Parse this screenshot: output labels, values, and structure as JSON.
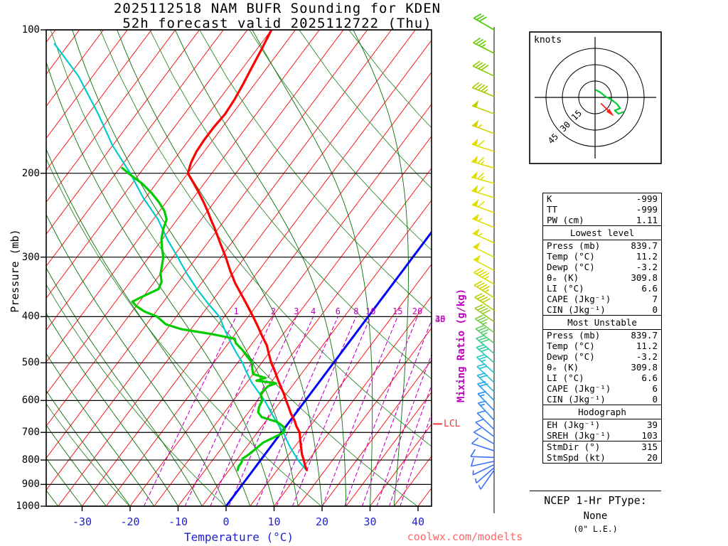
{
  "title": {
    "line1": "2025112518 NAM BUFR Sounding for KDEN",
    "line2": "52h forecast valid 2025112722 (Thu)"
  },
  "watermark": "coolwx.com/modelts",
  "axes": {
    "pressure_label": "Pressure (mb)",
    "temperature_label": "Temperature (°C)",
    "mixing_ratio_label": "Mixing Ratio (g/kg)",
    "lcl_label": "LCL"
  },
  "hodograph_panel": {
    "unit_label": "knots",
    "ring_labels": [
      "15",
      "30",
      "45"
    ]
  },
  "stats_panel": {
    "sections": [
      {
        "header": null,
        "rows": [
          [
            "K",
            "-999"
          ],
          [
            "TT",
            "-999"
          ],
          [
            "PW (cm)",
            "1.11"
          ]
        ]
      },
      {
        "header": "Lowest level",
        "rows": [
          [
            "Press (mb)",
            "839.7"
          ],
          [
            "Temp (°C)",
            "11.2"
          ],
          [
            "Dewp (°C)",
            "-3.2"
          ],
          [
            "θₑ (K)",
            "309.8"
          ],
          [
            "LI (°C)",
            "6.6"
          ],
          [
            "CAPE (Jkg⁻¹)",
            "7"
          ],
          [
            "CIN (Jkg⁻¹)",
            "0"
          ]
        ]
      },
      {
        "header": "Most Unstable",
        "rows": [
          [
            "Press (mb)",
            "839.7"
          ],
          [
            "Temp (°C)",
            "11.2"
          ],
          [
            "Dewp (°C)",
            "-3.2"
          ],
          [
            "θₑ (K)",
            "309.8"
          ],
          [
            "LI (°C)",
            "6.6"
          ],
          [
            "CAPE (Jkg⁻¹)",
            "6"
          ],
          [
            "CIN (Jkg⁻¹)",
            "0"
          ]
        ]
      },
      {
        "header": "Hodograph",
        "rows": [
          [
            "EH (Jkg⁻¹)",
            "39"
          ],
          [
            "SREH (Jkg⁻¹)",
            "103"
          ]
        ]
      },
      {
        "header": null,
        "rows": [
          [
            "StmDir (°)",
            "315"
          ],
          [
            "StmSpd (kt)",
            "20"
          ]
        ]
      }
    ]
  },
  "ptype_panel": {
    "title": "NCEP 1-Hr PType:",
    "value": "None",
    "note": "(0\" L.E.)"
  },
  "colors": {
    "isotherm": "#ff0000",
    "zero_isotherm": "#0000ff",
    "dry_adiabat": "#2d8b2d",
    "moist_adiabat": "#0a700a",
    "mixing_ratio": "#cc00cc",
    "temperature_profile": "#ff0000",
    "dewpoint_profile": "#00cc00",
    "parcel_profile": "#00cccc",
    "hodo_trace": "#00cc33",
    "storm_arrow": "#ff2222",
    "lcl": "#ff3333"
  },
  "chart_data": {
    "type": "line",
    "title": "2025112518 NAM BUFR Sounding for KDEN",
    "subtitle": "52h forecast valid 2025112722 (Thu)",
    "diagram": "skew-t log-p",
    "x_axis": {
      "label": "Temperature (°C)",
      "ticks": [
        -30,
        -20,
        -10,
        0,
        10,
        20,
        30,
        40
      ],
      "range": [
        -40,
        45
      ]
    },
    "y_axis": {
      "label": "Pressure (mb)",
      "ticks": [
        100,
        200,
        300,
        400,
        500,
        600,
        700,
        800,
        900,
        1000
      ],
      "scale": "log",
      "range": [
        100,
        1000
      ]
    },
    "isotherm_step": 5,
    "highlight_isotherm": 0,
    "dry_adiabats_K": [
      233,
      253,
      273,
      293,
      313,
      333,
      353,
      373,
      393,
      413,
      433
    ],
    "moist_adiabats_C": [
      -35,
      -30,
      -25,
      -20,
      -15,
      -10,
      -5,
      0,
      5,
      10,
      15,
      20,
      25,
      30,
      35
    ],
    "mixing_ratio_lines": [
      1,
      2,
      3,
      4,
      6,
      8,
      10,
      15,
      20,
      25,
      30,
      35,
      40
    ],
    "lcl_pressure": 672,
    "series": [
      {
        "name": "parcel",
        "color": "#00cccc",
        "width": 2.2,
        "points": [
          [
            107,
            -108
          ],
          [
            125,
            -98
          ],
          [
            150,
            -88
          ],
          [
            175,
            -80
          ],
          [
            200,
            -72
          ],
          [
            225,
            -65.5
          ],
          [
            250,
            -59
          ],
          [
            275,
            -54
          ],
          [
            300,
            -49
          ],
          [
            325,
            -44.5
          ],
          [
            350,
            -40
          ],
          [
            375,
            -35.5
          ],
          [
            400,
            -31
          ],
          [
            425,
            -28
          ],
          [
            450,
            -25
          ],
          [
            475,
            -22
          ],
          [
            500,
            -19
          ],
          [
            525,
            -16.5
          ],
          [
            550,
            -14
          ],
          [
            575,
            -11.2
          ],
          [
            600,
            -8.5
          ],
          [
            625,
            -6.2
          ],
          [
            650,
            -4
          ],
          [
            675,
            -1.8
          ],
          [
            700,
            0.4
          ],
          [
            725,
            2.2
          ],
          [
            750,
            4
          ],
          [
            775,
            5.9
          ],
          [
            800,
            7.8
          ],
          [
            820,
            9.4
          ],
          [
            840,
            11.1
          ]
        ]
      },
      {
        "name": "temperature",
        "color": "#ff0000",
        "width": 3.2,
        "points": [
          [
            840,
            11.2
          ],
          [
            820,
            10.0
          ],
          [
            800,
            9.0
          ],
          [
            780,
            7.8
          ],
          [
            760,
            6.8
          ],
          [
            740,
            5.8
          ],
          [
            720,
            4.8
          ],
          [
            700,
            3.8
          ],
          [
            680,
            2.2
          ],
          [
            660,
            0.8
          ],
          [
            640,
            -0.9
          ],
          [
            620,
            -2.4
          ],
          [
            600,
            -4.0
          ],
          [
            580,
            -5.6
          ],
          [
            560,
            -7.4
          ],
          [
            540,
            -9.2
          ],
          [
            520,
            -11.0
          ],
          [
            500,
            -13.0
          ],
          [
            480,
            -14.8
          ],
          [
            460,
            -16.6
          ],
          [
            440,
            -19.0
          ],
          [
            420,
            -21.4
          ],
          [
            400,
            -24.0
          ],
          [
            380,
            -26.8
          ],
          [
            360,
            -29.8
          ],
          [
            340,
            -33.0
          ],
          [
            320,
            -36.0
          ],
          [
            300,
            -39.0
          ],
          [
            280,
            -42.4
          ],
          [
            260,
            -46.0
          ],
          [
            250,
            -48.0
          ],
          [
            240,
            -50.0
          ],
          [
            230,
            -52.2
          ],
          [
            220,
            -54.6
          ],
          [
            210,
            -57.2
          ],
          [
            200,
            -60.0
          ],
          [
            190,
            -61.0
          ],
          [
            180,
            -61.6
          ],
          [
            170,
            -61.8
          ],
          [
            160,
            -61.8
          ],
          [
            150,
            -61.5
          ],
          [
            140,
            -61.8
          ],
          [
            130,
            -62.4
          ],
          [
            120,
            -63.2
          ],
          [
            110,
            -64.0
          ],
          [
            100,
            -65.0
          ]
        ]
      },
      {
        "name": "dewpoint",
        "color": "#00cc00",
        "width": 3.2,
        "points": [
          [
            840,
            -3.2
          ],
          [
            825,
            -3.6
          ],
          [
            810,
            -3.6
          ],
          [
            795,
            -4.0
          ],
          [
            780,
            -3.4
          ],
          [
            765,
            -3.0
          ],
          [
            750,
            -2.6
          ],
          [
            735,
            -2.2
          ],
          [
            720,
            -1.0
          ],
          [
            710,
            -0.2
          ],
          [
            700,
            0.5
          ],
          [
            690,
            0.2
          ],
          [
            680,
            -0.6
          ],
          [
            665,
            -2.6
          ],
          [
            650,
            -6.5
          ],
          [
            635,
            -8.0
          ],
          [
            620,
            -8.6
          ],
          [
            600,
            -9.0
          ],
          [
            580,
            -10.4
          ],
          [
            560,
            -10.0
          ],
          [
            552,
            -8.8
          ],
          [
            545,
            -13.3
          ],
          [
            538,
            -11.8
          ],
          [
            528,
            -15.0
          ],
          [
            515,
            -16.0
          ],
          [
            500,
            -17.0
          ],
          [
            485,
            -19.0
          ],
          [
            470,
            -21.0
          ],
          [
            455,
            -23.4
          ],
          [
            445,
            -24.4
          ],
          [
            435,
            -30.0
          ],
          [
            425,
            -37.0
          ],
          [
            415,
            -41.0
          ],
          [
            400,
            -44.0
          ],
          [
            390,
            -47.5
          ],
          [
            380,
            -50.0
          ],
          [
            372,
            -51.5
          ],
          [
            362,
            -50.0
          ],
          [
            350,
            -48.0
          ],
          [
            338,
            -48.5
          ],
          [
            325,
            -50.0
          ],
          [
            312,
            -51.0
          ],
          [
            300,
            -52.0
          ],
          [
            288,
            -53.6
          ],
          [
            275,
            -55.2
          ],
          [
            262,
            -56.4
          ],
          [
            250,
            -57.2
          ],
          [
            240,
            -59.0
          ],
          [
            230,
            -61.5
          ],
          [
            220,
            -64.5
          ],
          [
            210,
            -68.0
          ],
          [
            202,
            -71.5
          ],
          [
            195,
            -74.5
          ]
        ]
      }
    ],
    "wind_barbs": [
      [
        100,
        30,
        300,
        "#44cc00"
      ],
      [
        112,
        35,
        297,
        "#66cc00"
      ],
      [
        125,
        40,
        295,
        "#88cc00"
      ],
      [
        138,
        45,
        292,
        "#a6cc00"
      ],
      [
        150,
        50,
        290,
        "#c2d000"
      ],
      [
        165,
        55,
        290,
        "#d4d400"
      ],
      [
        180,
        60,
        288,
        "#e0e000"
      ],
      [
        195,
        65,
        286,
        "#e0e000"
      ],
      [
        210,
        65,
        285,
        "#e0e000"
      ],
      [
        225,
        60,
        287,
        "#e0e000"
      ],
      [
        242,
        60,
        290,
        "#e0e000"
      ],
      [
        260,
        55,
        292,
        "#e0e000"
      ],
      [
        280,
        55,
        294,
        "#e0e000"
      ],
      [
        300,
        50,
        296,
        "#e0e000"
      ],
      [
        320,
        50,
        298,
        "#e0e000"
      ],
      [
        342,
        45,
        300,
        "#dcdc00"
      ],
      [
        365,
        45,
        302,
        "#d0d400"
      ],
      [
        388,
        40,
        304,
        "#b8d000"
      ],
      [
        410,
        40,
        305,
        "#98cc22"
      ],
      [
        432,
        35,
        306,
        "#78cc44"
      ],
      [
        455,
        35,
        308,
        "#58cc66"
      ],
      [
        478,
        30,
        310,
        "#40cc88"
      ],
      [
        500,
        28,
        311,
        "#30ccaa"
      ],
      [
        525,
        25,
        312,
        "#26c8c8"
      ],
      [
        550,
        22,
        313,
        "#22c0d8"
      ],
      [
        575,
        20,
        314,
        "#22b4e4"
      ],
      [
        600,
        18,
        315,
        "#229fee"
      ],
      [
        630,
        16,
        316,
        "#2a8ff4"
      ],
      [
        660,
        14,
        317,
        "#338af8"
      ],
      [
        690,
        12,
        314,
        "#3680fa"
      ],
      [
        715,
        11,
        308,
        "#3a7cfc"
      ],
      [
        740,
        10,
        300,
        "#3a78fc"
      ],
      [
        765,
        9,
        288,
        "#3a74fc"
      ],
      [
        790,
        8,
        272,
        "#3a70fc"
      ],
      [
        805,
        8,
        258,
        "#3a70fc"
      ],
      [
        818,
        7,
        244,
        "#3a70fc"
      ],
      [
        830,
        6,
        229,
        "#3a70fc"
      ],
      [
        840,
        5,
        215,
        "#3a70fc"
      ]
    ],
    "hodograph": {
      "rings_kt": [
        15,
        30,
        45
      ],
      "trace_kt": [
        [
          0.5,
          7
        ],
        [
          5,
          4.5
        ],
        [
          10,
          0.5
        ],
        [
          15,
          -2
        ],
        [
          20,
          -6
        ],
        [
          23,
          -10
        ],
        [
          18,
          -12
        ],
        [
          21.5,
          -15
        ],
        [
          27,
          -13
        ]
      ],
      "storm_dir": 315,
      "storm_spd": 20
    }
  }
}
